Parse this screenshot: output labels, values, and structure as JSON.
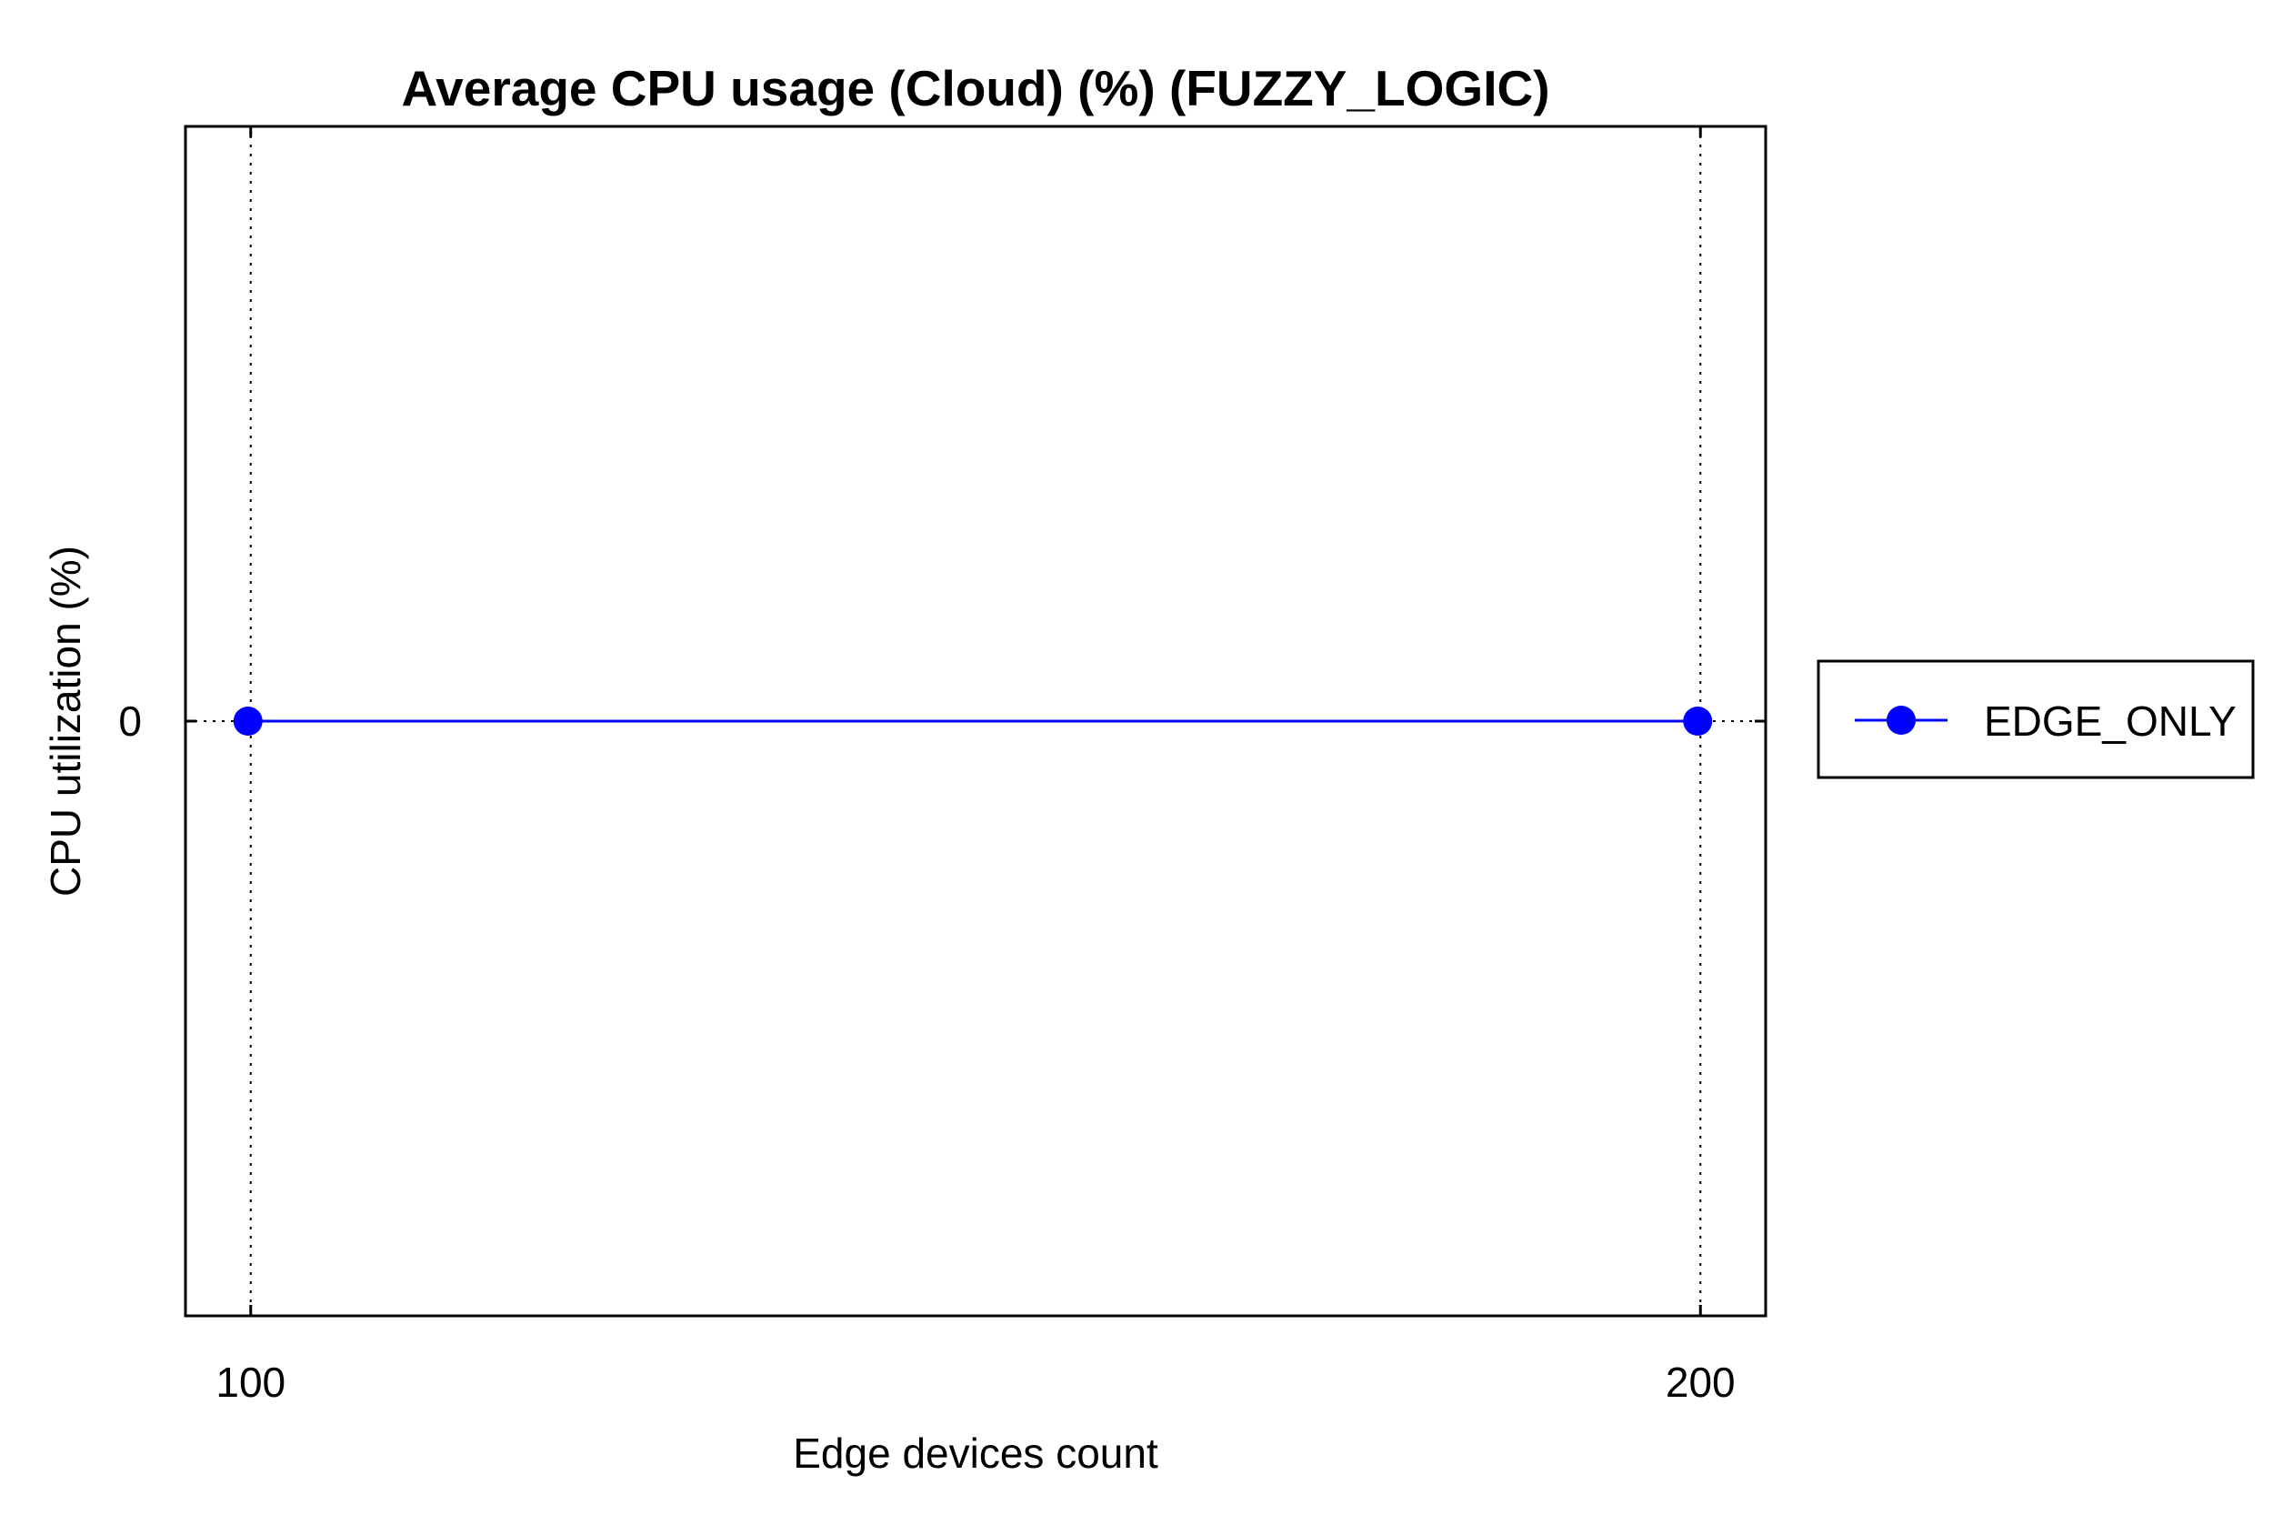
{
  "chart_data": {
    "type": "line",
    "title": "Average CPU usage (Cloud) (%) (FUZZY_LOGIC)",
    "xlabel": "Edge devices count",
    "ylabel": "CPU utilization (%)",
    "x": [
      100,
      200
    ],
    "x_ticks": [
      "100",
      "200"
    ],
    "y_ticks": [
      "0"
    ],
    "xlim": [
      95.5,
      204.5
    ],
    "ylim": [
      -1,
      1
    ],
    "grid": true,
    "legend_position": "right",
    "series": [
      {
        "name": "EDGE_ONLY",
        "values": [
          0,
          0
        ],
        "color": "#0000ff",
        "marker": "circle"
      }
    ],
    "colors": {
      "axis": "#000000",
      "grid": "#000000",
      "background": "#ffffff"
    }
  }
}
